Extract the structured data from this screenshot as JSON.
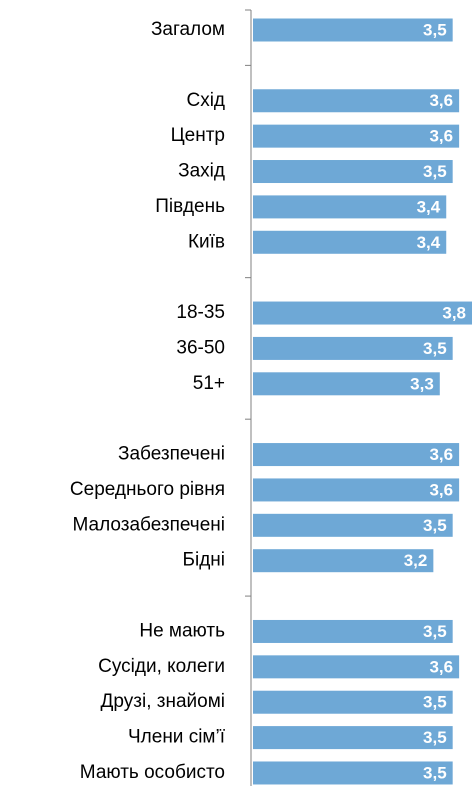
{
  "chart_data": {
    "type": "barh",
    "categories": [
      "Загалом",
      null,
      "Схід",
      "Центр",
      "Захід",
      "Південь",
      "Київ",
      null,
      "18-35",
      "36-50",
      "51+",
      null,
      "Забезпечені",
      "Середнього рівня",
      "Малозабезпечені",
      "Бідні",
      null,
      "Не мають",
      "Сусіди, колеги",
      "Друзі, знайомі",
      "Члени сім’ї",
      "Мають особисто"
    ],
    "values": [
      3.5,
      null,
      3.6,
      3.6,
      3.5,
      3.4,
      3.4,
      null,
      3.8,
      3.5,
      3.3,
      null,
      3.6,
      3.6,
      3.5,
      3.2,
      null,
      3.5,
      3.6,
      3.5,
      3.5,
      3.5
    ],
    "value_labels": [
      "3,5",
      null,
      "3,6",
      "3,6",
      "3,5",
      "3,4",
      "3,4",
      null,
      "3,8",
      "3,5",
      "3,3",
      null,
      "3,6",
      "3,6",
      "3,5",
      "3,2",
      null,
      "3,5",
      "3,6",
      "3,5",
      "3,5",
      "3,5"
    ],
    "color": "#6ea8d6",
    "xlim": [
      0.4,
      3.8
    ]
  }
}
